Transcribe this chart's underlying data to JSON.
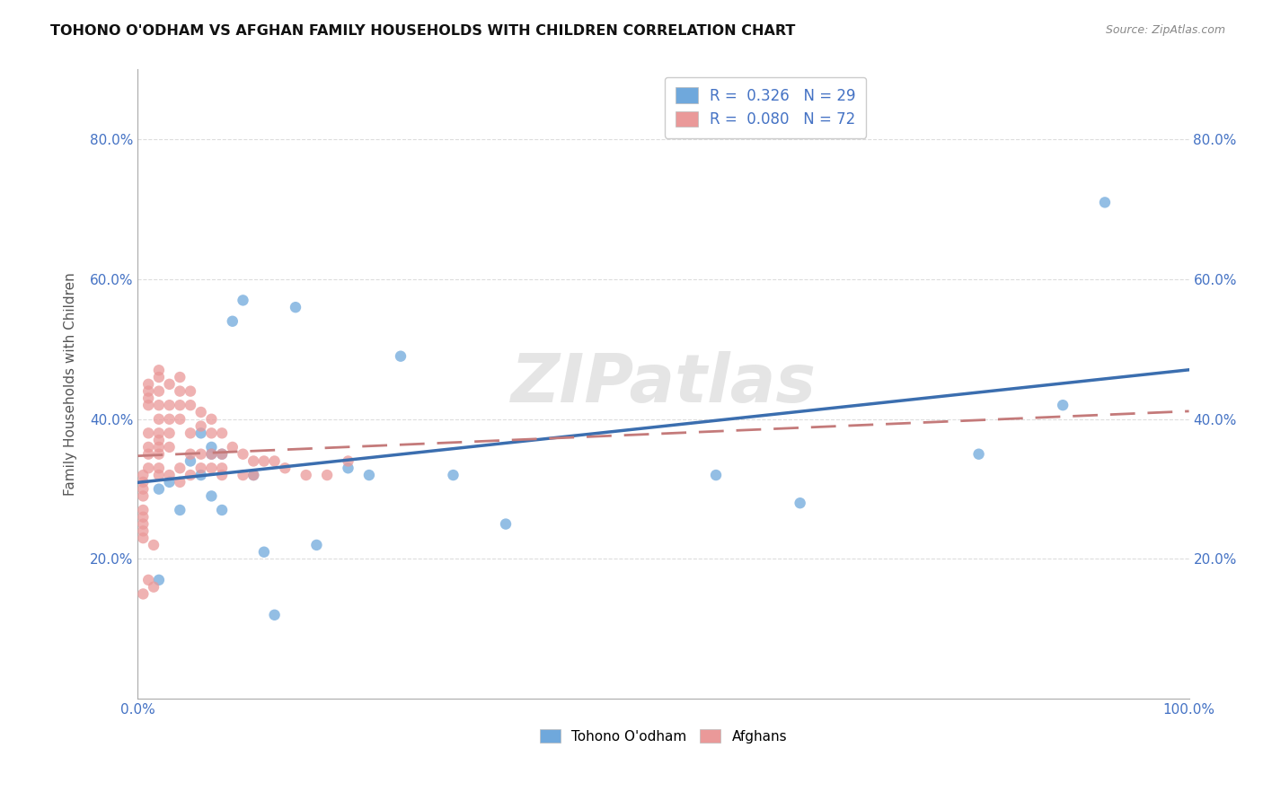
{
  "title": "TOHONO O'ODHAM VS AFGHAN FAMILY HOUSEHOLDS WITH CHILDREN CORRELATION CHART",
  "source": "Source: ZipAtlas.com",
  "ylabel": "Family Households with Children",
  "xlim": [
    0.0,
    1.0
  ],
  "ylim": [
    0.0,
    0.9
  ],
  "ytick_positions": [
    0.2,
    0.4,
    0.6,
    0.8
  ],
  "yticklabels": [
    "20.0%",
    "40.0%",
    "60.0%",
    "80.0%"
  ],
  "tohono_color": "#6fa8dc",
  "afghan_color": "#ea9999",
  "tohono_line_color": "#3b6eaf",
  "afghan_line_color": "#c47a7a",
  "legend_R_tohono": "R =  0.326",
  "legend_N_tohono": "N = 29",
  "legend_R_afghan": "R =  0.080",
  "legend_N_afghan": "N = 72",
  "marker_size": 80,
  "tohono_x": [
    0.02,
    0.02,
    0.03,
    0.04,
    0.05,
    0.06,
    0.06,
    0.07,
    0.07,
    0.07,
    0.08,
    0.08,
    0.09,
    0.1,
    0.11,
    0.12,
    0.13,
    0.15,
    0.17,
    0.2,
    0.22,
    0.25,
    0.3,
    0.35,
    0.55,
    0.63,
    0.8,
    0.88,
    0.92
  ],
  "tohono_y": [
    0.17,
    0.3,
    0.31,
    0.27,
    0.34,
    0.38,
    0.32,
    0.36,
    0.35,
    0.29,
    0.27,
    0.35,
    0.54,
    0.57,
    0.32,
    0.21,
    0.12,
    0.56,
    0.22,
    0.33,
    0.32,
    0.49,
    0.32,
    0.25,
    0.32,
    0.28,
    0.35,
    0.42,
    0.71
  ],
  "afghan_x": [
    0.005,
    0.005,
    0.005,
    0.005,
    0.005,
    0.005,
    0.005,
    0.005,
    0.005,
    0.005,
    0.01,
    0.01,
    0.01,
    0.01,
    0.01,
    0.01,
    0.01,
    0.01,
    0.01,
    0.02,
    0.02,
    0.02,
    0.02,
    0.02,
    0.02,
    0.02,
    0.02,
    0.02,
    0.02,
    0.02,
    0.03,
    0.03,
    0.03,
    0.03,
    0.03,
    0.03,
    0.04,
    0.04,
    0.04,
    0.04,
    0.04,
    0.04,
    0.05,
    0.05,
    0.05,
    0.05,
    0.05,
    0.06,
    0.06,
    0.06,
    0.06,
    0.07,
    0.07,
    0.07,
    0.07,
    0.08,
    0.08,
    0.08,
    0.08,
    0.09,
    0.1,
    0.1,
    0.11,
    0.11,
    0.12,
    0.13,
    0.14,
    0.16,
    0.18,
    0.2,
    0.015,
    0.015
  ],
  "afghan_y": [
    0.29,
    0.32,
    0.31,
    0.3,
    0.27,
    0.26,
    0.25,
    0.24,
    0.23,
    0.15,
    0.45,
    0.44,
    0.43,
    0.42,
    0.38,
    0.36,
    0.35,
    0.33,
    0.17,
    0.47,
    0.46,
    0.44,
    0.42,
    0.4,
    0.38,
    0.37,
    0.36,
    0.35,
    0.33,
    0.32,
    0.45,
    0.42,
    0.4,
    0.38,
    0.36,
    0.32,
    0.46,
    0.44,
    0.42,
    0.4,
    0.33,
    0.31,
    0.44,
    0.42,
    0.38,
    0.35,
    0.32,
    0.41,
    0.39,
    0.35,
    0.33,
    0.4,
    0.38,
    0.35,
    0.33,
    0.38,
    0.35,
    0.33,
    0.32,
    0.36,
    0.35,
    0.32,
    0.34,
    0.32,
    0.34,
    0.34,
    0.33,
    0.32,
    0.32,
    0.34,
    0.22,
    0.16
  ],
  "background_color": "#ffffff",
  "grid_color": "#dddddd",
  "watermark": "ZIPatlas"
}
